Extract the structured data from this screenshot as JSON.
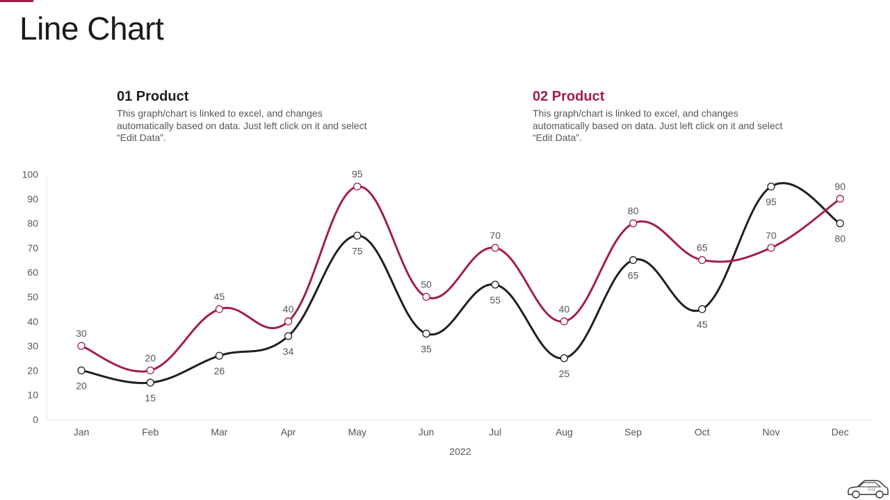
{
  "page": {
    "title": "Line Chart",
    "page_number": "49",
    "accent_color": "#a31d4a"
  },
  "products": [
    {
      "heading": "01 Product",
      "description": "This graph/chart is linked to excel, and changes automatically based on data. Just left click on it and select “Edit Data”.",
      "color": "#1f1f1f"
    },
    {
      "heading": "02 Product",
      "description": "This graph/chart is linked to excel, and changes automatically based on data. Just left click on it and select “Edit Data”.",
      "color": "#a31d4a"
    }
  ],
  "chart_data": {
    "type": "line",
    "smooth": true,
    "x": [
      "Jan",
      "Feb",
      "Mar",
      "Apr",
      "May",
      "Jun",
      "Jul",
      "Aug",
      "Sep",
      "Oct",
      "Nov",
      "Dec"
    ],
    "xlabel": "2022",
    "ylabel": "",
    "ylim": [
      0,
      100
    ],
    "yticks": [
      0,
      10,
      20,
      30,
      40,
      50,
      60,
      70,
      80,
      90,
      100
    ],
    "grid": false,
    "legend": "none",
    "series": [
      {
        "color": "#1f1f1f",
        "values": [
          20,
          15,
          26,
          34,
          75,
          35,
          55,
          25,
          65,
          45,
          95,
          80
        ],
        "label_position": [
          "below",
          "below",
          "below",
          "below",
          "below",
          "below",
          "below",
          "below",
          "below",
          "below",
          "below",
          "below"
        ]
      },
      {
        "color": "#a31d4a",
        "values": [
          30,
          20,
          45,
          40,
          95,
          50,
          70,
          40,
          80,
          65,
          70,
          90
        ],
        "label_position": [
          "above",
          "above",
          "above",
          "above",
          "above",
          "above",
          "above",
          "above",
          "above",
          "above",
          "above",
          "above"
        ]
      }
    ]
  },
  "footer": {
    "icon": "car-icon"
  }
}
